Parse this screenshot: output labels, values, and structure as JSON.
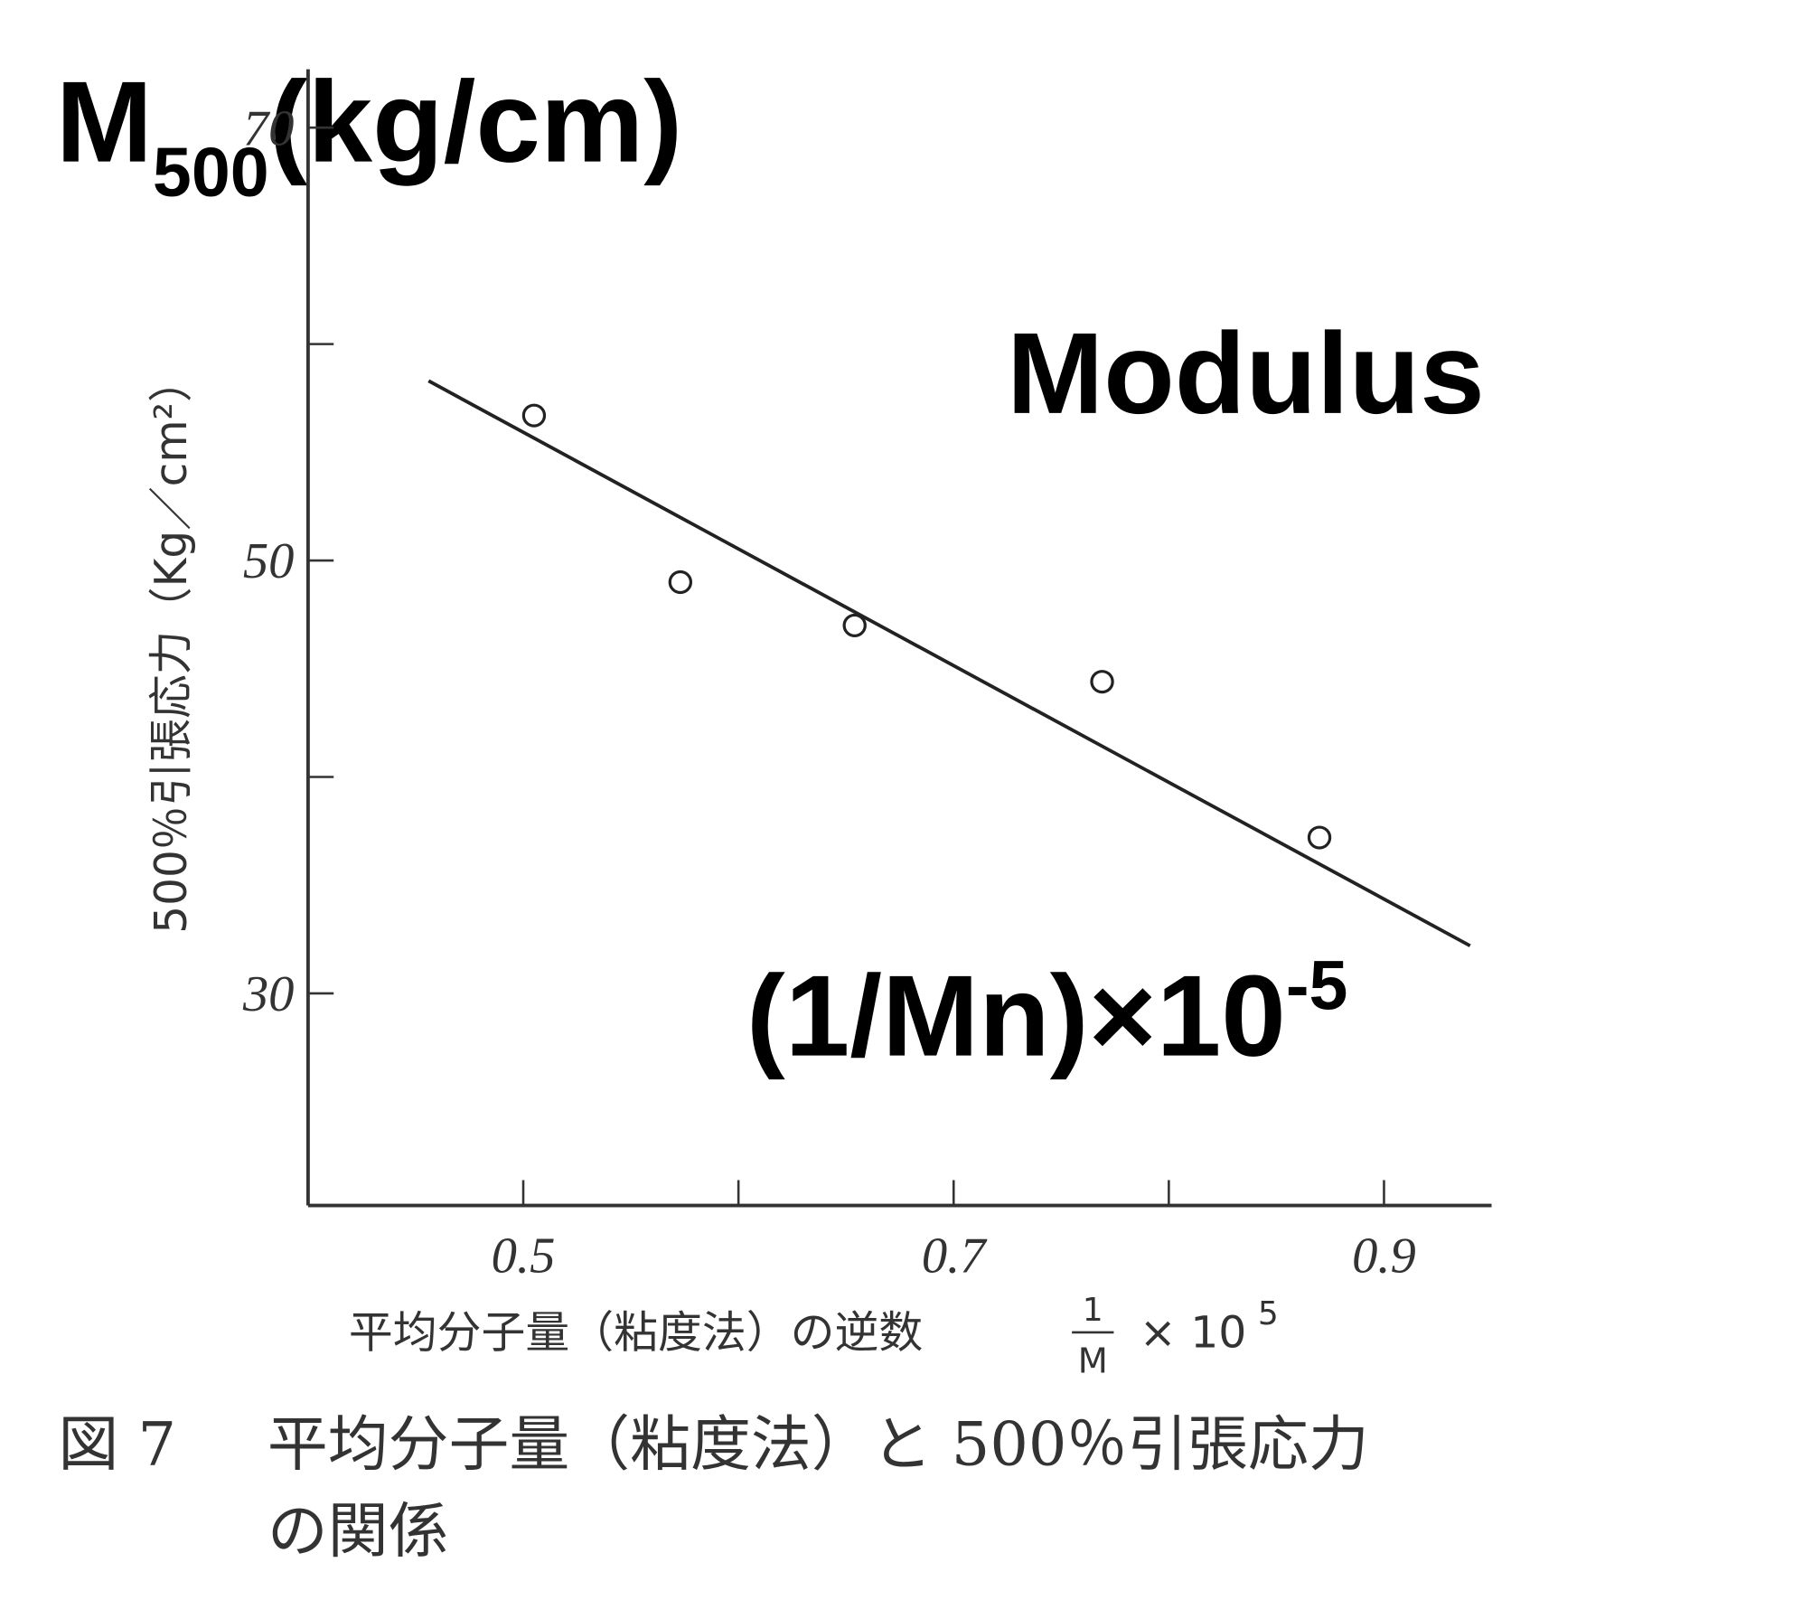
{
  "chart_data": {
    "type": "scatter",
    "overlay_title": {
      "main": "M",
      "sub": "500",
      "unit": "(kg/cm)"
    },
    "overlay_label": "Modulus",
    "overlay_x": {
      "main": "(1/Mn)×10",
      "sup": "-5"
    },
    "y_label": "500％引張応力（Kg／cm²）",
    "x_label": {
      "text": "平均分子量（粘度法）の逆数",
      "num": "1",
      "den": "M",
      "factor": "× 10",
      "exp": "5"
    },
    "caption": {
      "figure": "図 7",
      "line1": "平均分子量（粘度法）と 500％引張応力",
      "line2": "の関係"
    },
    "xlim": [
      0.4,
      0.95
    ],
    "ylim": [
      20.2,
      72.7
    ],
    "xticks": [
      0.5,
      0.7,
      0.9
    ],
    "xminor": [
      0.6,
      0.8
    ],
    "yticks": [
      30,
      50,
      70
    ],
    "yminor": [
      40,
      60
    ],
    "points": {
      "x": [
        0.505,
        0.573,
        0.654,
        0.769,
        0.87
      ],
      "values": [
        56.7,
        49.0,
        47.0,
        44.4,
        37.2
      ]
    },
    "fit": {
      "x": [
        0.456,
        0.94
      ],
      "values": [
        58.3,
        32.2
      ]
    },
    "color": "#222222"
  }
}
